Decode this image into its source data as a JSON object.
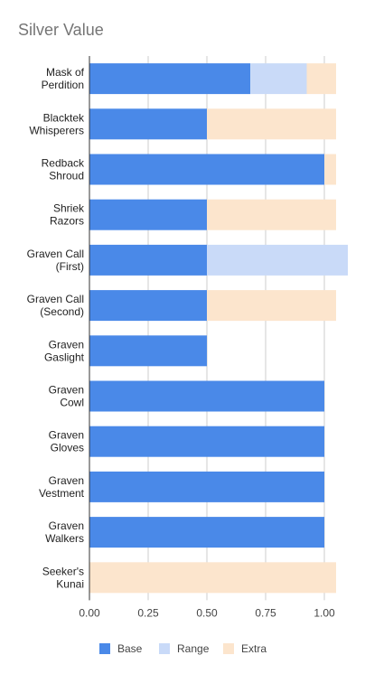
{
  "chart_data": {
    "type": "bar",
    "orientation": "horizontal",
    "stacked": true,
    "title": "Silver Value",
    "xlabel": "",
    "ylabel": "",
    "xlim": [
      0,
      1.1
    ],
    "x_ticks": [
      "0.00",
      "0.25",
      "0.50",
      "0.75",
      "1.00"
    ],
    "x_tick_values": [
      0,
      0.25,
      0.5,
      0.75,
      1.0
    ],
    "grid": true,
    "legend_position": "bottom",
    "categories": [
      [
        "Mask of",
        "Perdition"
      ],
      [
        "Blacktek",
        "Whisperers"
      ],
      [
        "Redback",
        "Shroud"
      ],
      [
        "Shriek",
        "Razors"
      ],
      [
        "Graven Call",
        "(First)"
      ],
      [
        "Graven Call",
        "(Second)"
      ],
      [
        "Graven",
        "Gaslight"
      ],
      [
        "Graven",
        "Cowl"
      ],
      [
        "Graven",
        "Gloves"
      ],
      [
        "Graven",
        "Vestment"
      ],
      [
        "Graven",
        "Walkers"
      ],
      [
        "Seeker's",
        "Kunai"
      ]
    ],
    "series": [
      {
        "name": "Base",
        "color": "#4a89e8",
        "values": [
          0.685,
          0.5,
          1.0,
          0.5,
          0.5,
          0.5,
          0.5,
          1.0,
          1.0,
          1.0,
          1.0,
          0
        ]
      },
      {
        "name": "Range",
        "color": "#c9daf8",
        "values": [
          0.24,
          0,
          0,
          0,
          0.6,
          0,
          0,
          0,
          0,
          0,
          0,
          0
        ]
      },
      {
        "name": "Extra",
        "color": "#fce5cd",
        "values": [
          0.125,
          0.55,
          0.05,
          0.55,
          0,
          0.55,
          0,
          0,
          0,
          0,
          0,
          1.05
        ]
      }
    ]
  }
}
